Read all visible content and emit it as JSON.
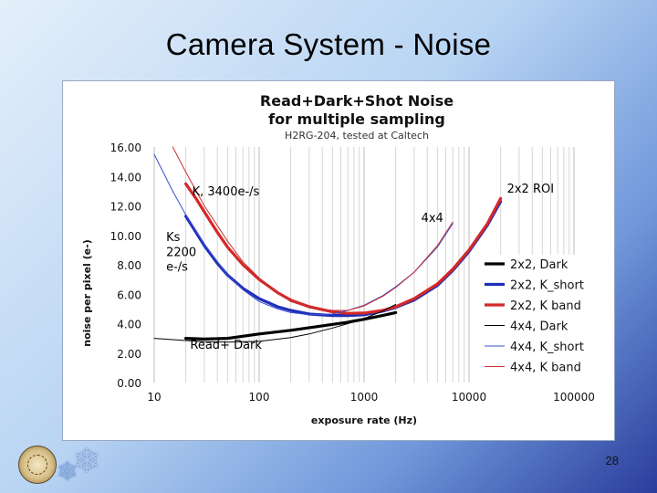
{
  "slide": {
    "title": "Camera System - Noise",
    "page_number": "28",
    "logo_icon": "university-seal-icon",
    "decor_icon": "snowflake-icon"
  },
  "chart_data": {
    "type": "line",
    "title": "Read+Dark+Shot Noise",
    "title_line2": "for multiple sampling",
    "subtitle": "H2RG-204, tested at Caltech",
    "xlabel": "exposure rate  (Hz)",
    "ylabel": "noise per pixel (e-)",
    "xscale": "log",
    "xlim": [
      10,
      100000
    ],
    "ylim": [
      0,
      16
    ],
    "xticks": [
      10,
      100,
      1000,
      10000,
      100000
    ],
    "xtick_labels": [
      "10",
      "100",
      "1000",
      "10000",
      "100000"
    ],
    "yticks": [
      0,
      2,
      4,
      6,
      8,
      10,
      12,
      14,
      16
    ],
    "ytick_labels": [
      "0.00",
      "2.00",
      "4.00",
      "6.00",
      "8.00",
      "10.00",
      "12.00",
      "14.00",
      "16.00"
    ],
    "grid": {
      "x_minor": true,
      "y_major": false
    },
    "legend_position": "right",
    "series": [
      {
        "name": "2x2, Dark",
        "color": "#000000",
        "width": 3.2,
        "points": [
          [
            20,
            3.0
          ],
          [
            30,
            2.95
          ],
          [
            50,
            3.0
          ],
          [
            100,
            3.3
          ],
          [
            200,
            3.55
          ],
          [
            400,
            3.85
          ],
          [
            700,
            4.1
          ],
          [
            1000,
            4.3
          ],
          [
            1500,
            4.55
          ],
          [
            2000,
            4.75
          ]
        ]
      },
      {
        "name": "2x2, K_short",
        "color": "#1f2fb8",
        "width": 3.2,
        "points": [
          [
            20,
            11.3
          ],
          [
            25,
            10.2
          ],
          [
            30,
            9.3
          ],
          [
            40,
            8.1
          ],
          [
            50,
            7.3
          ],
          [
            70,
            6.4
          ],
          [
            100,
            5.7
          ],
          [
            150,
            5.15
          ],
          [
            200,
            4.9
          ],
          [
            300,
            4.65
          ],
          [
            500,
            4.55
          ],
          [
            700,
            4.55
          ],
          [
            1000,
            4.6
          ],
          [
            1500,
            4.85
          ],
          [
            2000,
            5.1
          ],
          [
            3000,
            5.6
          ],
          [
            5000,
            6.6
          ],
          [
            7000,
            7.6
          ],
          [
            10000,
            8.9
          ],
          [
            15000,
            10.7
          ],
          [
            20000,
            12.3
          ]
        ]
      },
      {
        "name": "2x2, K band",
        "color": "#d42828",
        "width": 3.2,
        "points": [
          [
            20,
            13.5
          ],
          [
            25,
            12.5
          ],
          [
            30,
            11.6
          ],
          [
            40,
            10.2
          ],
          [
            50,
            9.2
          ],
          [
            70,
            8.0
          ],
          [
            100,
            7.0
          ],
          [
            150,
            6.1
          ],
          [
            200,
            5.6
          ],
          [
            300,
            5.15
          ],
          [
            500,
            4.8
          ],
          [
            700,
            4.7
          ],
          [
            1000,
            4.72
          ],
          [
            1500,
            4.9
          ],
          [
            2000,
            5.15
          ],
          [
            3000,
            5.7
          ],
          [
            5000,
            6.7
          ],
          [
            7000,
            7.7
          ],
          [
            10000,
            9.0
          ],
          [
            15000,
            10.8
          ],
          [
            20000,
            12.5
          ]
        ]
      },
      {
        "name": "4x4, Dark",
        "color": "#000000",
        "width": 1,
        "points": [
          [
            10,
            3.0
          ],
          [
            20,
            2.85
          ],
          [
            30,
            2.78
          ],
          [
            50,
            2.75
          ],
          [
            100,
            2.8
          ],
          [
            200,
            3.05
          ],
          [
            300,
            3.3
          ],
          [
            500,
            3.7
          ],
          [
            700,
            4.0
          ],
          [
            1000,
            4.35
          ],
          [
            1500,
            4.85
          ],
          [
            2000,
            5.3
          ]
        ]
      },
      {
        "name": "4x4, K_short",
        "color": "#3a4fcf",
        "width": 1,
        "points": [
          [
            10,
            15.5
          ],
          [
            15,
            13.0
          ],
          [
            20,
            11.4
          ],
          [
            30,
            9.4
          ],
          [
            50,
            7.3
          ],
          [
            70,
            6.3
          ],
          [
            100,
            5.5
          ],
          [
            150,
            5.0
          ],
          [
            200,
            4.75
          ],
          [
            300,
            4.6
          ],
          [
            500,
            4.65
          ],
          [
            700,
            4.9
          ],
          [
            1000,
            5.25
          ],
          [
            1500,
            5.9
          ],
          [
            2000,
            6.5
          ],
          [
            3000,
            7.5
          ],
          [
            5000,
            9.2
          ],
          [
            7000,
            10.8
          ]
        ]
      },
      {
        "name": "4x4, K band",
        "color": "#c83232",
        "width": 1,
        "points": [
          [
            15,
            16.0
          ],
          [
            20,
            14.3
          ],
          [
            30,
            12.0
          ],
          [
            50,
            9.6
          ],
          [
            70,
            8.2
          ],
          [
            100,
            7.1
          ],
          [
            150,
            6.1
          ],
          [
            200,
            5.5
          ],
          [
            300,
            5.1
          ],
          [
            500,
            4.9
          ],
          [
            700,
            4.9
          ],
          [
            1000,
            5.2
          ],
          [
            1500,
            5.85
          ],
          [
            2000,
            6.45
          ],
          [
            3000,
            7.5
          ],
          [
            5000,
            9.3
          ],
          [
            7000,
            10.9
          ]
        ]
      }
    ],
    "annotations": [
      {
        "text": "K, 3400e-/s",
        "x": 23,
        "y": 12.7,
        "color": "#000000"
      },
      {
        "text": "Ks",
        "x": 13,
        "y": 9.6,
        "color": "#000000"
      },
      {
        "text": "2200",
        "x": 13,
        "y": 8.6,
        "color": "#000000"
      },
      {
        "text": "e-/s",
        "x": 13,
        "y": 7.6,
        "color": "#000000"
      },
      {
        "text": "4x4",
        "x": 3500,
        "y": 10.9,
        "color": "#000000"
      },
      {
        "text": "2x2 ROI",
        "x": 23000,
        "y": 12.9,
        "color": "#000000"
      },
      {
        "text": "Read+ Dark",
        "x": 22,
        "y": 2.3,
        "color": "#000000"
      }
    ]
  }
}
